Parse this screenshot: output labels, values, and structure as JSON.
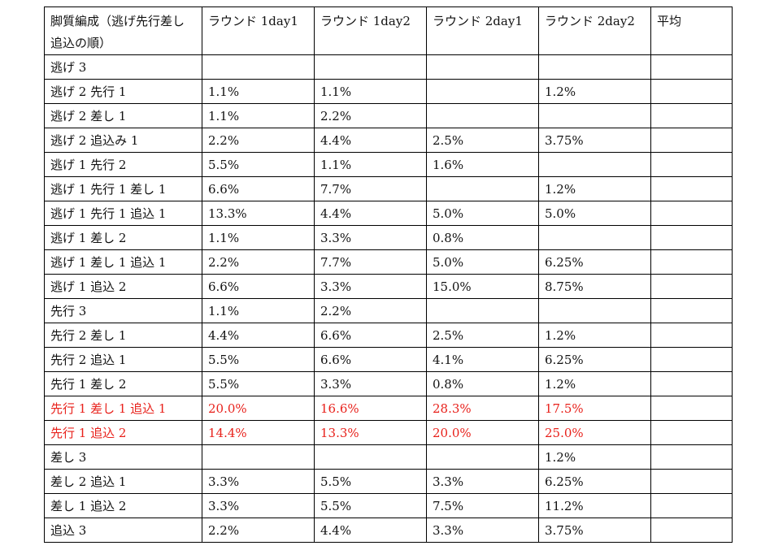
{
  "table": {
    "headers": [
      "脚質編成（逃げ先行差し追込の順）",
      "ラウンド 1day1",
      "ラウンド 1day2",
      "ラウンド 2day1",
      "ラウンド 2day2",
      "平均"
    ],
    "rows": [
      {
        "label": "逃げ 3",
        "cells": [
          "",
          "",
          "",
          "",
          ""
        ],
        "highlight": false
      },
      {
        "label": "逃げ 2 先行 1",
        "cells": [
          "1.1%",
          "1.1%",
          "",
          "1.2%",
          ""
        ],
        "highlight": false
      },
      {
        "label": "逃げ 2 差し 1",
        "cells": [
          "1.1%",
          "2.2%",
          "",
          "",
          ""
        ],
        "highlight": false
      },
      {
        "label": "逃げ 2 追込み 1",
        "cells": [
          "2.2%",
          "4.4%",
          "2.5%",
          "3.75%",
          ""
        ],
        "highlight": false
      },
      {
        "label": "逃げ 1 先行 2",
        "cells": [
          "5.5%",
          "1.1%",
          "1.6%",
          "",
          ""
        ],
        "highlight": false
      },
      {
        "label": "逃げ 1 先行 1 差し 1",
        "cells": [
          "6.6%",
          "7.7%",
          "",
          "1.2%",
          ""
        ],
        "highlight": false
      },
      {
        "label": "逃げ 1 先行 1 追込 1",
        "cells": [
          "13.3%",
          "4.4%",
          "5.0%",
          "5.0%",
          ""
        ],
        "highlight": false
      },
      {
        "label": "逃げ 1 差し 2",
        "cells": [
          "1.1%",
          "3.3%",
          "0.8%",
          "",
          ""
        ],
        "highlight": false
      },
      {
        "label": "逃げ 1 差し 1 追込 1",
        "cells": [
          "2.2%",
          "7.7%",
          "5.0%",
          "6.25%",
          ""
        ],
        "highlight": false
      },
      {
        "label": "逃げ 1 追込 2",
        "cells": [
          "6.6%",
          "3.3%",
          "15.0%",
          "8.75%",
          ""
        ],
        "highlight": false
      },
      {
        "label": "先行 3",
        "cells": [
          "1.1%",
          "2.2%",
          "",
          "",
          ""
        ],
        "highlight": false
      },
      {
        "label": "先行 2 差し 1",
        "cells": [
          "4.4%",
          "6.6%",
          "2.5%",
          "1.2%",
          ""
        ],
        "highlight": false
      },
      {
        "label": "先行 2 追込 1",
        "cells": [
          "5.5%",
          "6.6%",
          "4.1%",
          "6.25%",
          ""
        ],
        "highlight": false
      },
      {
        "label": "先行 1 差し 2",
        "cells": [
          "5.5%",
          "3.3%",
          "0.8%",
          "1.2%",
          ""
        ],
        "highlight": false
      },
      {
        "label": "先行 1 差し 1 追込 1",
        "cells": [
          "20.0%",
          "16.6%",
          "28.3%",
          "17.5%",
          ""
        ],
        "highlight": true
      },
      {
        "label": "先行 1 追込 2",
        "cells": [
          "14.4%",
          "13.3%",
          "20.0%",
          "25.0%",
          ""
        ],
        "highlight": true
      },
      {
        "label": "差し 3",
        "cells": [
          "",
          "",
          "",
          "1.2%",
          ""
        ],
        "highlight": false
      },
      {
        "label": "差し 2 追込 1",
        "cells": [
          "3.3%",
          "5.5%",
          "3.3%",
          "6.25%",
          ""
        ],
        "highlight": false
      },
      {
        "label": "差し 1 追込 2",
        "cells": [
          "3.3%",
          "5.5%",
          "7.5%",
          "11.2%",
          ""
        ],
        "highlight": false
      },
      {
        "label": "追込 3",
        "cells": [
          "2.2%",
          "4.4%",
          "3.3%",
          "3.75%",
          ""
        ],
        "highlight": false
      }
    ]
  },
  "colors": {
    "highlight_text": "#e8211b",
    "border": "#000000",
    "text": "#111111"
  }
}
